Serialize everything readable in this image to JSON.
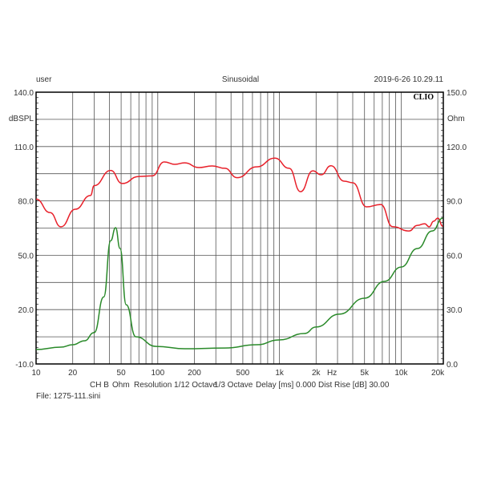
{
  "header": {
    "left": "user",
    "center": "Sinusoidal",
    "right": "2019-6-26 10.29.11",
    "logo": "CLIO"
  },
  "footer": {
    "channel": "CH B",
    "unit": "Ohm",
    "resolution": "Resolution 1/12 Octave",
    "smoothing": "1/3 Octave",
    "delay": "Delay [ms] 0.000",
    "dist_rise": "Dist Rise [dB] 30.00",
    "file": "File: 1275-111.sini"
  },
  "chart_data": {
    "type": "line",
    "xscale": "log",
    "xlim": [
      10,
      24000
    ],
    "x_ticks": [
      "10",
      "20",
      "50",
      "100",
      "200",
      "500",
      "1k",
      "2k",
      "5k",
      "10k",
      "20k"
    ],
    "x_tick_values": [
      10,
      20,
      50,
      100,
      200,
      500,
      1000,
      2000,
      5000,
      10000,
      20000
    ],
    "xunit": "Hz",
    "ylabel_left": "dBSPL",
    "ylim_left": [
      -10,
      140
    ],
    "y_ticks_left": [
      "140.0",
      "110.0",
      "80.0",
      "50.0",
      "20.0",
      "-10.0"
    ],
    "ylabel_right": "Ohm",
    "ylim_right": [
      0,
      150
    ],
    "y_ticks_right": [
      "150.0",
      "120.0",
      "90.0",
      "60.0",
      "30.0",
      "0.0"
    ],
    "grid": true,
    "series": [
      {
        "axis": "left",
        "color": "#e8202a",
        "x": [
          10,
          13,
          16,
          21,
          28,
          30,
          41,
          51,
          70,
          90,
          113,
          138,
          166,
          218,
          280,
          355,
          450,
          649,
          916,
          1200,
          1490,
          1880,
          2200,
          2650,
          3400,
          4000,
          5200,
          6800,
          8500,
          11600,
          13600,
          15600,
          17000,
          18500,
          20000,
          22000
        ],
        "y": [
          81,
          73.6,
          65.7,
          75.4,
          83,
          88.4,
          96.8,
          89.6,
          93.5,
          93.8,
          101.5,
          100.2,
          101,
          98.4,
          99.3,
          98,
          92.8,
          98.8,
          103.6,
          98,
          85.1,
          96.6,
          94.4,
          99.4,
          90.9,
          90,
          76.7,
          78,
          65.8,
          63.4,
          66.5,
          67.4,
          65.7,
          68.8,
          70.5,
          66
        ]
      },
      {
        "axis": "right",
        "color": "#2a8a2a",
        "x": [
          10,
          16,
          20,
          25,
          30,
          36,
          41,
          45,
          49,
          55,
          66,
          97,
          166,
          355,
          650,
          1000,
          1600,
          2000,
          3100,
          5000,
          7300,
          10000,
          13600,
          18000,
          22000
        ],
        "y": [
          8,
          9.3,
          10.6,
          12.8,
          17.3,
          37,
          68,
          75.2,
          63.7,
          32.7,
          15,
          9.7,
          8.4,
          8.8,
          10.6,
          13.3,
          16.8,
          20.4,
          27.5,
          36.3,
          45.6,
          53.5,
          63.7,
          73.4,
          80.5
        ]
      }
    ]
  }
}
